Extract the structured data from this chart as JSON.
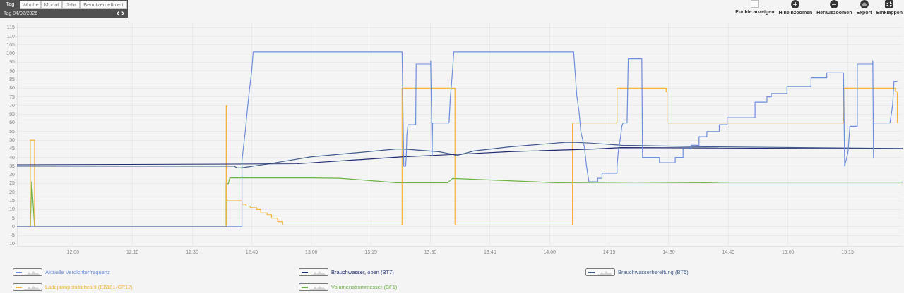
{
  "chart_data": {
    "type": "line",
    "annotations": [
      "Tag",
      "Woche",
      "Monat",
      "Jahr",
      "Benutzerdefiniert",
      "Tag 04/02/2026",
      "Punkte anzeigen",
      "Hineinzoomen",
      "Herauszoomen",
      "Export",
      "Einklappen"
    ],
    "xlim": [
      11.765,
      15.481
    ],
    "xticks": [
      {
        "value": 12,
        "label": "12:00"
      },
      {
        "value": 12.25,
        "label": "12:15"
      },
      {
        "value": 12.5,
        "label": "12:30"
      },
      {
        "value": 12.75,
        "label": "12:45"
      },
      {
        "value": 13,
        "label": "13:00"
      },
      {
        "value": 13.25,
        "label": "13:15"
      },
      {
        "value": 13.5,
        "label": "13:30"
      },
      {
        "value": 13.75,
        "label": "13:45"
      },
      {
        "value": 14,
        "label": "14:00"
      },
      {
        "value": 14.25,
        "label": "14:15"
      },
      {
        "value": 14.5,
        "label": "14:30"
      },
      {
        "value": 14.75,
        "label": "14:45"
      },
      {
        "value": 15,
        "label": "15:00"
      },
      {
        "value": 15.25,
        "label": "15:15"
      }
    ],
    "ylim": [
      -11,
      118
    ],
    "yticks": [
      -10,
      -5,
      0,
      5,
      10,
      15,
      20,
      25,
      30,
      35,
      40,
      45,
      50,
      55,
      60,
      65,
      70,
      75,
      80,
      85,
      90,
      95,
      100,
      105,
      110,
      115
    ],
    "grid": true,
    "legend": "bottom",
    "series": [
      {
        "name": "Aktuelle Verdichterfrequenz",
        "color": "#6d8fd9",
        "x": [
          11.765,
          12.708,
          12.709,
          12.717,
          12.723,
          12.732,
          12.741,
          12.75,
          12.756,
          13.381,
          13.388,
          13.396,
          13.399,
          13.401,
          13.406,
          13.438,
          13.44,
          13.499,
          13.501,
          13.507,
          13.509,
          13.578,
          13.583,
          13.588,
          13.593,
          13.598,
          14.101,
          14.114,
          14.124,
          14.131,
          14.146,
          14.155,
          14.165,
          14.202,
          14.202,
          14.22,
          14.22,
          14.283,
          14.283,
          14.288,
          14.298,
          14.303,
          14.308,
          14.325,
          14.33,
          14.387,
          14.39,
          14.461,
          14.461,
          14.527,
          14.527,
          14.56,
          14.56,
          14.594,
          14.594,
          14.627,
          14.627,
          14.66,
          14.66,
          14.712,
          14.712,
          14.745,
          14.745,
          14.862,
          14.862,
          14.912,
          14.912,
          14.93,
          14.93,
          14.996,
          14.996,
          15.097,
          15.097,
          15.163,
          15.163,
          15.233,
          15.238,
          15.252,
          15.26,
          15.289,
          15.291,
          15.354,
          15.356,
          15.359,
          15.36,
          15.428,
          15.439,
          15.445,
          15.459
        ],
        "values": [
          0,
          0,
          38,
          48,
          55,
          68,
          80,
          90,
          101,
          101,
          35,
          35,
          42,
          53,
          59,
          59,
          94,
          94,
          96,
          41,
          60,
          60,
          74,
          82,
          91,
          101,
          101,
          76,
          66,
          55,
          46,
          35,
          26,
          26,
          28,
          28,
          31,
          31,
          35,
          43,
          52,
          58,
          60,
          60,
          97,
          97,
          40,
          40,
          37,
          37,
          40,
          40,
          45,
          45,
          47,
          47,
          52,
          52,
          55,
          55,
          59,
          59,
          63,
          63,
          72,
          72,
          75,
          75,
          77,
          77,
          81,
          81,
          86,
          86,
          89,
          89,
          35,
          43,
          58,
          58,
          94,
          94,
          96,
          40,
          60,
          60,
          70,
          84,
          84
        ]
      },
      {
        "name": "Brauchwasser, oben (BT7)",
        "color": "#1e2b6f",
        "x": [
          11.765,
          12.676,
          12.942,
          13.386,
          13.603,
          13.831,
          14.185,
          14.303,
          14.658,
          15.481
        ],
        "values": [
          35.8,
          36.2,
          36.4,
          40.4,
          41.8,
          43.4,
          44.9,
          45.7,
          45.5,
          45
        ]
      },
      {
        "name": "Brauchwasserbereitung (BT6)",
        "color": "#3f5c8c",
        "x": [
          11.765,
          12.676,
          12.691,
          12.706,
          12.824,
          13.001,
          13.238,
          13.357,
          13.386,
          13.534,
          13.593,
          13.608,
          13.682,
          13.831,
          14.066,
          14.096,
          14.185,
          14.303,
          14.599,
          15.481
        ],
        "values": [
          35,
          35,
          34,
          34,
          36.4,
          40.4,
          43.4,
          44.9,
          44.9,
          43.4,
          41.9,
          41.1,
          43.8,
          46.1,
          48.8,
          48.9,
          48.2,
          47,
          46.3,
          45.2
        ]
      },
      {
        "name": "Ladepumpendrehzahl (EB101-GP12)",
        "color": "#f3b43a",
        "type": "step",
        "x": [
          11.765,
          11.821,
          11.839,
          12.643,
          12.646,
          12.709,
          12.726,
          12.744,
          12.771,
          12.788,
          12.815,
          12.833,
          12.859,
          12.88,
          13.381,
          13.603,
          14.096,
          14.283,
          14.489,
          14.493,
          15.234,
          15.451,
          15.459
        ],
        "values": [
          0,
          50,
          0,
          70,
          15,
          13,
          12,
          11,
          10,
          8,
          7,
          5,
          3,
          1,
          80,
          1,
          60,
          80,
          78,
          60,
          80,
          78,
          60
        ]
      },
      {
        "name": "Volumenstrommesser (BF1)",
        "color": "#6db246",
        "x": [
          11.765,
          11.821,
          11.827,
          11.839,
          12.643,
          12.643,
          12.652,
          12.658,
          13.001,
          13.12,
          13.357,
          13.573,
          13.593,
          14.028,
          14.362,
          14.658,
          14.762,
          15.481
        ],
        "values": [
          0,
          0,
          26,
          0,
          0,
          25,
          25,
          28.2,
          28.2,
          28,
          25.5,
          25.5,
          27.9,
          25.5,
          25.8,
          25.5,
          25.8,
          25.8
        ]
      }
    ]
  }
}
